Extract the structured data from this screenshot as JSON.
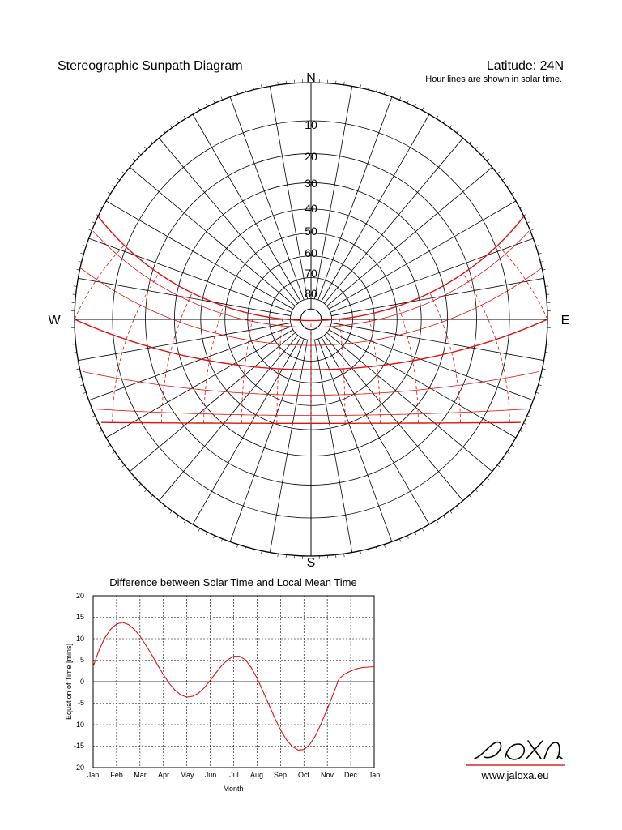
{
  "header": {
    "title": "Stereographic Sunpath Diagram",
    "latitude": "Latitude: 24N",
    "note": "Hour lines are shown in solar time."
  },
  "compass": {
    "north": "N",
    "south": "S",
    "east": "E",
    "west": "W"
  },
  "altitude_labels": [
    "10",
    "20",
    "30",
    "40",
    "50",
    "60",
    "70",
    "80"
  ],
  "sunpath": {
    "latitude_deg": 24
  },
  "colors": {
    "grid": "#000000",
    "sunpath": "#e01010"
  },
  "chart_data": {
    "type": "line",
    "title": "Difference between Solar Time and Local Mean Time",
    "xlabel": "Month",
    "ylabel": "Equation of Time [mins]",
    "categories": [
      "Jan",
      "Feb",
      "Mar",
      "Apr",
      "May",
      "Jun",
      "Jul",
      "Aug",
      "Sep",
      "Oct",
      "Nov",
      "Dec",
      "Jan"
    ],
    "y_ticks": [
      "20",
      "15",
      "10",
      "5",
      "0",
      "-5",
      "-10",
      "-15",
      "-20"
    ],
    "ylim": [
      -20,
      20
    ],
    "grid": true,
    "series": [
      {
        "x": [
          0,
          0.25,
          0.5,
          0.75,
          1,
          1.25,
          1.5,
          1.75,
          2,
          2.25,
          2.5,
          2.75,
          3,
          3.25,
          3.5,
          3.75,
          4,
          4.25,
          4.5,
          4.75,
          5,
          5.25,
          5.5,
          5.75,
          6,
          6.25,
          6.5,
          6.75,
          7,
          7.25,
          7.5,
          7.75,
          8,
          8.25,
          8.5,
          8.75,
          9,
          9.25,
          9.5,
          9.75,
          10,
          10.25,
          10.5,
          10.75,
          11,
          11.25,
          11.5,
          11.75,
          12
        ],
        "values": [
          3.5,
          7.3,
          10.2,
          12.2,
          13.4,
          13.8,
          13.3,
          12.2,
          10.6,
          8.5,
          6.3,
          3.9,
          1.6,
          -0.4,
          -2.0,
          -3.1,
          -3.6,
          -3.4,
          -2.7,
          -1.4,
          0.3,
          2.1,
          3.8,
          5.1,
          5.9,
          5.9,
          5.1,
          3.3,
          0.8,
          -2.2,
          -5.3,
          -8.4,
          -11.2,
          -13.5,
          -15.1,
          -15.9,
          -15.8,
          -14.6,
          -12.5,
          -9.6,
          -6.3,
          -2.9,
          0.7,
          1.8,
          2.5,
          3.0,
          3.3,
          3.4,
          3.5
        ]
      }
    ]
  },
  "logo": {
    "mark": "jaloxa",
    "url": "www.jaloxa.eu"
  }
}
